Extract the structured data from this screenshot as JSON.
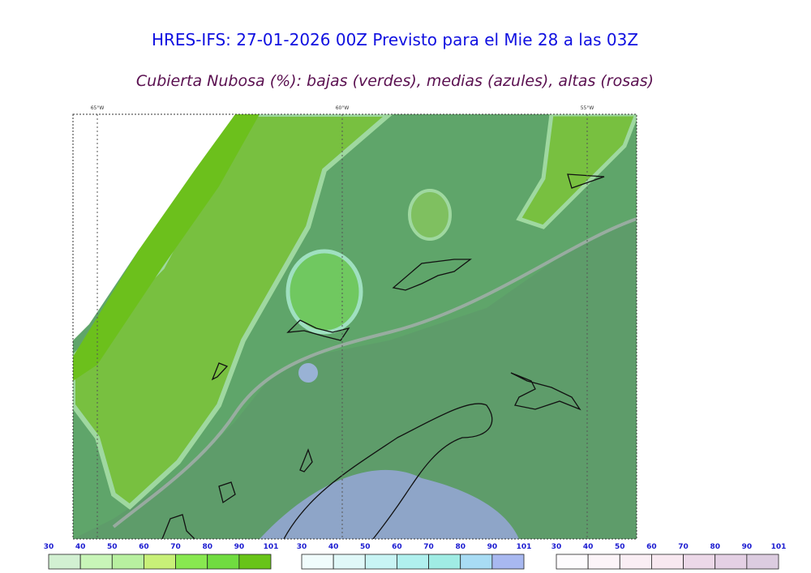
{
  "header": {
    "title": "HRES-IFS: 27-01-2026 00Z Previsto para el Mie 28 a las 03Z",
    "subtitle": "Cubierta Nubosa (%): bajas (verdes), medias (azules), altas (rosas)"
  },
  "map": {
    "longitude_labels": [
      "65°W",
      "60°W",
      "55°W"
    ]
  },
  "colorbars": [
    {
      "labels": [
        30,
        40,
        50,
        60,
        70,
        80,
        90,
        101
      ],
      "colors": [
        "#d2f0d2",
        "#c8f5b8",
        "#b8f0a0",
        "#c8f078",
        "#88e850",
        "#70dc40",
        "#68c418"
      ]
    },
    {
      "labels": [
        30,
        40,
        50,
        60,
        70,
        80,
        90,
        101
      ],
      "colors": [
        "#f0fcfc",
        "#e0f8f8",
        "#c8f4f4",
        "#b0f0ee",
        "#a0ece4",
        "#a8dcf4",
        "#a8b8f0"
      ]
    },
    {
      "labels": [
        30,
        40,
        50,
        60,
        70,
        80,
        90,
        101
      ],
      "colors": [
        "#fdfbfd",
        "#fcf4f8",
        "#faeef4",
        "#f8e8f0",
        "#ecd8e8",
        "#e4d0e4",
        "#dccce0"
      ]
    }
  ]
}
